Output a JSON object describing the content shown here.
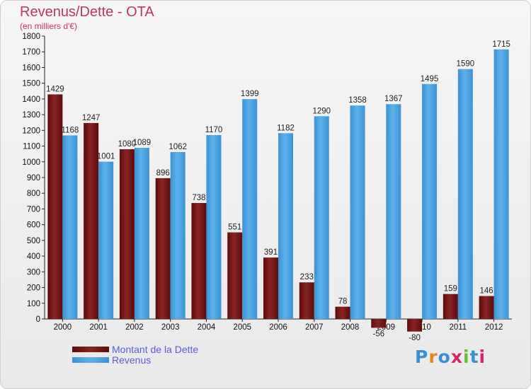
{
  "header": {
    "title": "Revenus/Dette - OTA",
    "subtitle": "(en milliers d'€)"
  },
  "colors": {
    "dette": "#7a1616",
    "revenus": "#4da3e2",
    "title": "#c0336a",
    "legend_text": "#5b5bd8"
  },
  "logo": {
    "letters": [
      "P",
      "r",
      "o",
      "x",
      "i",
      "t",
      "i"
    ],
    "colors": [
      "#3a8fd4",
      "#e08a1e",
      "#3a8fd4",
      "#d4246a",
      "#6abf2e",
      "#3a8fd4",
      "#d4246a"
    ]
  },
  "chart_data": {
    "type": "bar",
    "title": "Revenus/Dette - OTA",
    "subtitle": "(en milliers d'€)",
    "categories": [
      "2000",
      "2001",
      "2002",
      "2003",
      "2004",
      "2005",
      "2006",
      "2007",
      "2008",
      "2009",
      "2010",
      "2011",
      "2012"
    ],
    "series": [
      {
        "name": "Montant de la Dette",
        "values": [
          1429,
          1247,
          1080,
          896,
          738,
          551,
          391,
          233,
          78,
          -56,
          -80,
          159,
          146
        ]
      },
      {
        "name": "Revenus",
        "values": [
          1168,
          1001,
          1089,
          1062,
          1170,
          1399,
          1182,
          1290,
          1358,
          1367,
          1495,
          1590,
          1715
        ]
      }
    ],
    "data_labels": {
      "Montant de la Dette": [
        "1429",
        "1247",
        "1080",
        "896",
        "738",
        "551",
        "391",
        "233",
        "78",
        "-56",
        "-80",
        "159",
        "146"
      ],
      "Revenus": [
        "1168",
        "1001",
        "1089",
        "1062",
        "1170",
        "1399",
        "1182",
        "1290",
        "1358",
        "1367",
        "1495",
        "1590",
        "1715"
      ]
    },
    "ylim": [
      0,
      1800
    ],
    "y_ticks": [
      "0",
      "100",
      "200",
      "300",
      "400",
      "500",
      "600",
      "700",
      "800",
      "900",
      "1000",
      "1100",
      "1200",
      "1300",
      "1400",
      "1500",
      "1600",
      "1700",
      "1800"
    ],
    "legend_position": "bottom-left",
    "grid": false
  }
}
